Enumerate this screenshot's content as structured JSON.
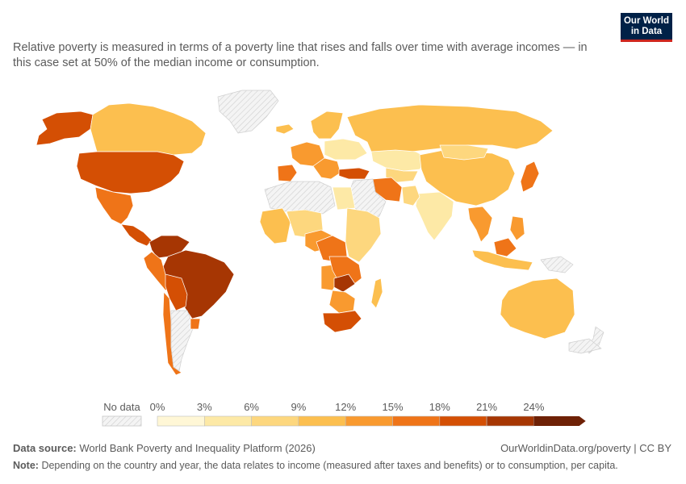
{
  "subtitle": "Relative poverty is measured in terms of a poverty line that rises and falls over time with average incomes — in this case set at 50% of the median income or consumption.",
  "logo": {
    "line1": "Our World",
    "line2": "in Data"
  },
  "legend": {
    "no_data_label": "No data",
    "ticks": [
      "0%",
      "3%",
      "6%",
      "9%",
      "12%",
      "15%",
      "18%",
      "21%",
      "24%"
    ],
    "colors": [
      "#fff7d6",
      "#fde9a6",
      "#fdd77e",
      "#fcbf4f",
      "#f99a2f",
      "#ef7418",
      "#d44f04",
      "#a63603",
      "#6e2106"
    ],
    "no_data_color": "#e0e0e0"
  },
  "footer": {
    "source_label": "Data source:",
    "source_text": "World Bank Poverty and Inequality Platform (2026)",
    "url": "OurWorldinData.org/poverty | CC BY",
    "note_label": "Note:",
    "note_text": "Depending on the country and year, the data relates to income (measured after taxes and benefits) or to consumption, per capita."
  },
  "regions": [
    {
      "name": "Alaska",
      "value": 18
    },
    {
      "name": "Canada",
      "value": 11
    },
    {
      "name": "Greenland",
      "value": null
    },
    {
      "name": "United States",
      "value": 18
    },
    {
      "name": "Mexico",
      "value": 17
    },
    {
      "name": "Central America",
      "value": 20
    },
    {
      "name": "Colombia & Venezuela",
      "value": 21
    },
    {
      "name": "Brazil",
      "value": 22
    },
    {
      "name": "Peru",
      "value": 17
    },
    {
      "name": "Bolivia & Paraguay",
      "value": 19
    },
    {
      "name": "Chile",
      "value": 15
    },
    {
      "name": "Argentina",
      "value": null
    },
    {
      "name": "Uruguay",
      "value": 16
    },
    {
      "name": "Iceland",
      "value": 9
    },
    {
      "name": "Western Europe",
      "value": 13
    },
    {
      "name": "Iberia",
      "value": 15
    },
    {
      "name": "Scandinavia",
      "value": 10
    },
    {
      "name": "Eastern Europe",
      "value": 5
    },
    {
      "name": "Balkans & Italy",
      "value": 13
    },
    {
      "name": "Turkey",
      "value": 18
    },
    {
      "name": "Russia",
      "value": 11
    },
    {
      "name": "Kazakhstan",
      "value": 4
    },
    {
      "name": "Central Asia",
      "value": 8
    },
    {
      "name": "Iran",
      "value": 15
    },
    {
      "name": "Middle East",
      "value": null
    },
    {
      "name": "China",
      "value": 11
    },
    {
      "name": "Mongolia",
      "value": 6
    },
    {
      "name": "India",
      "value": 4
    },
    {
      "name": "Pakistan",
      "value": 7
    },
    {
      "name": "Southeast Asia",
      "value": 12
    },
    {
      "name": "Japan",
      "value": 15
    },
    {
      "name": "Indonesia",
      "value": 10
    },
    {
      "name": "Borneo",
      "value": 16
    },
    {
      "name": "Philippines",
      "value": 12
    },
    {
      "name": "Papua New Guinea",
      "value": null
    },
    {
      "name": "Australia",
      "value": 11
    },
    {
      "name": "New Zealand",
      "value": null
    },
    {
      "name": "North Africa",
      "value": null
    },
    {
      "name": "Egypt",
      "value": 4
    },
    {
      "name": "West Africa",
      "value": 10
    },
    {
      "name": "Sahel",
      "value": 8
    },
    {
      "name": "Nigeria & Chad",
      "value": 14
    },
    {
      "name": "Central Africa",
      "value": 17
    },
    {
      "name": "East Africa",
      "value": 7
    },
    {
      "name": "Angola",
      "value": 13
    },
    {
      "name": "DR Congo & Zambia",
      "value": 16
    },
    {
      "name": "Zambia core",
      "value": 23
    },
    {
      "name": "Southern Africa",
      "value": 14
    },
    {
      "name": "South Africa",
      "value": 19
    },
    {
      "name": "Madagascar",
      "value": 10
    },
    {
      "name": "Antarctic fringe",
      "value": null
    }
  ]
}
